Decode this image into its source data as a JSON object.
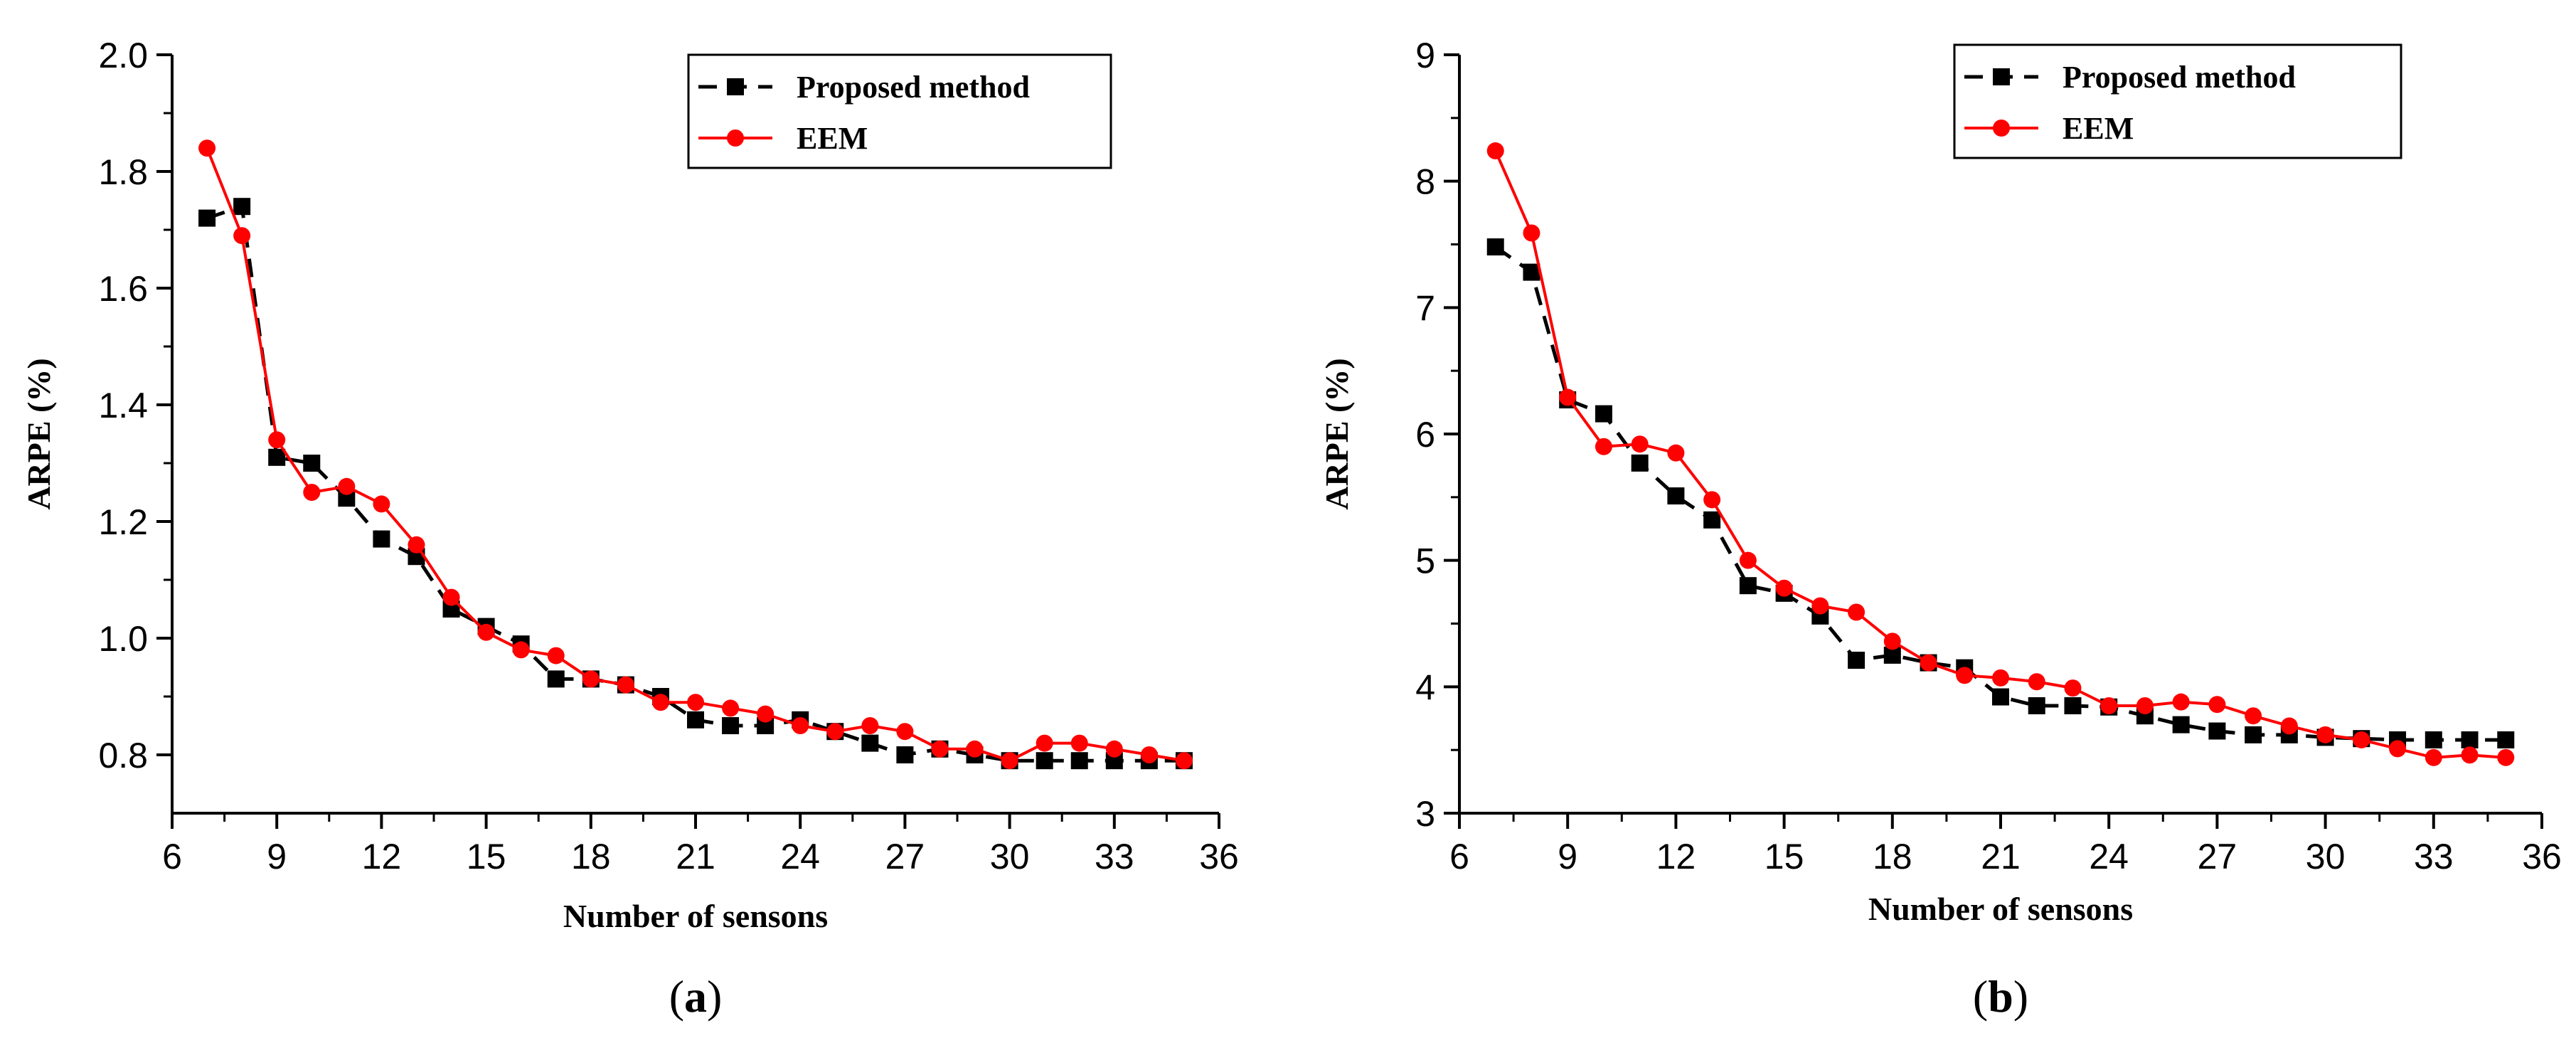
{
  "chart_data": [
    {
      "type": "line",
      "caption_letter": "a",
      "xlabel": "Number of sensons",
      "ylabel": "ARPE  (%)",
      "xlim": [
        6,
        36
      ],
      "ylim": [
        0.7,
        2.0
      ],
      "xticks": [
        "6",
        "9",
        "12",
        "15",
        "18",
        "21",
        "24",
        "27",
        "30",
        "33",
        "36"
      ],
      "yticks": [
        "0.8",
        "1.0",
        "1.2",
        "1.4",
        "1.6",
        "1.8",
        "2.0"
      ],
      "legend_position": "top-right",
      "series": [
        {
          "name": "Proposed method",
          "color": "#000000",
          "style": "dashed",
          "marker": "square",
          "x": [
            7,
            8,
            9,
            10,
            11,
            12,
            13,
            14,
            15,
            16,
            17,
            18,
            19,
            20,
            21,
            22,
            23,
            24,
            25,
            26,
            27,
            28,
            29,
            30,
            31,
            32,
            33,
            34,
            35
          ],
          "y": [
            1.72,
            1.74,
            1.31,
            1.3,
            1.24,
            1.17,
            1.14,
            1.05,
            1.02,
            0.99,
            0.93,
            0.93,
            0.92,
            0.9,
            0.86,
            0.85,
            0.85,
            0.86,
            0.84,
            0.82,
            0.8,
            0.81,
            0.8,
            0.79,
            0.79,
            0.79,
            0.79,
            0.79,
            0.79
          ]
        },
        {
          "name": "EEM",
          "color": "#ff0000",
          "style": "solid",
          "marker": "circle",
          "x": [
            7,
            8,
            9,
            10,
            11,
            12,
            13,
            14,
            15,
            16,
            17,
            18,
            19,
            20,
            21,
            22,
            23,
            24,
            25,
            26,
            27,
            28,
            29,
            30,
            31,
            32,
            33,
            34,
            35
          ],
          "y": [
            1.84,
            1.69,
            1.34,
            1.25,
            1.26,
            1.23,
            1.16,
            1.07,
            1.01,
            0.98,
            0.97,
            0.93,
            0.92,
            0.89,
            0.89,
            0.88,
            0.87,
            0.85,
            0.84,
            0.85,
            0.84,
            0.81,
            0.81,
            0.79,
            0.82,
            0.82,
            0.81,
            0.8,
            0.79
          ]
        }
      ]
    },
    {
      "type": "line",
      "caption_letter": "b",
      "xlabel": "Number of sensons",
      "ylabel": "ARPE  (%)",
      "xlim": [
        6,
        36
      ],
      "ylim": [
        3,
        9
      ],
      "xticks": [
        "6",
        "9",
        "12",
        "15",
        "18",
        "21",
        "24",
        "27",
        "30",
        "33",
        "36"
      ],
      "yticks": [
        "3",
        "4",
        "5",
        "6",
        "7",
        "8",
        "9"
      ],
      "legend_position": "top-right",
      "series": [
        {
          "name": "Proposed method",
          "color": "#000000",
          "style": "dashed",
          "marker": "square",
          "x": [
            7,
            8,
            9,
            10,
            11,
            12,
            13,
            14,
            15,
            16,
            17,
            18,
            19,
            20,
            21,
            22,
            23,
            24,
            25,
            26,
            27,
            28,
            29,
            30,
            31,
            32,
            33,
            34,
            35
          ],
          "y": [
            7.48,
            7.28,
            6.27,
            6.16,
            5.77,
            5.51,
            5.32,
            4.8,
            4.74,
            4.56,
            4.21,
            4.25,
            4.19,
            4.15,
            3.92,
            3.85,
            3.85,
            3.84,
            3.77,
            3.7,
            3.65,
            3.62,
            3.62,
            3.6,
            3.59,
            3.58,
            3.58,
            3.58,
            3.58
          ]
        },
        {
          "name": "EEM",
          "color": "#ff0000",
          "style": "solid",
          "marker": "circle",
          "x": [
            7,
            8,
            9,
            10,
            11,
            12,
            13,
            14,
            15,
            16,
            17,
            18,
            19,
            20,
            21,
            22,
            23,
            24,
            25,
            26,
            27,
            28,
            29,
            30,
            31,
            32,
            33,
            34,
            35
          ],
          "y": [
            8.24,
            7.59,
            6.29,
            5.9,
            5.92,
            5.85,
            5.48,
            5.0,
            4.78,
            4.64,
            4.59,
            4.36,
            4.19,
            4.09,
            4.07,
            4.04,
            3.99,
            3.85,
            3.85,
            3.88,
            3.86,
            3.77,
            3.69,
            3.62,
            3.58,
            3.51,
            3.44,
            3.46,
            3.44
          ]
        }
      ]
    }
  ]
}
